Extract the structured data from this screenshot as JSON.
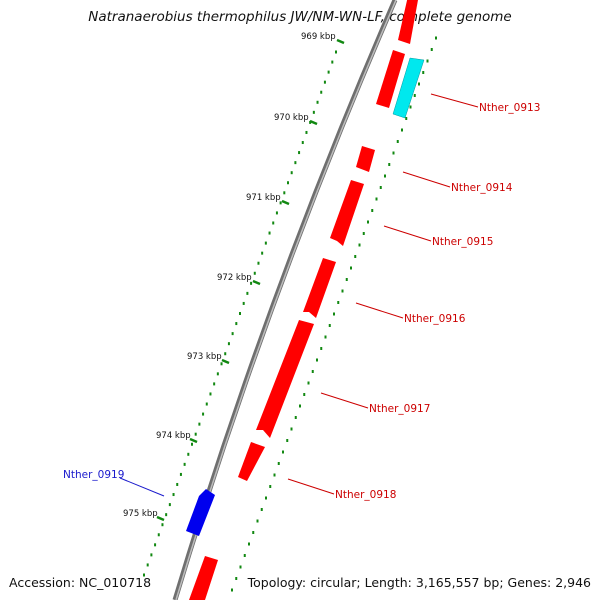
{
  "title": "Natranaerobius thermophilus JW/NM-WN-LF, complete genome",
  "footer": {
    "accession": "Accession: NC_010718",
    "summary": "Topology: circular; Length: 3,165,557 bp; Genes: 2,946"
  },
  "ticks": [
    "969 kbp",
    "970 kbp",
    "971 kbp",
    "972 kbp",
    "973 kbp",
    "974 kbp",
    "975 kbp"
  ],
  "gene_labels": [
    "Nther_0913",
    "Nther_0914",
    "Nther_0915",
    "Nther_0916",
    "Nther_0917",
    "Nther_0918",
    "Nther_0919"
  ],
  "colors": {
    "forward_gene": "#ff0000",
    "reverse_gene": "#0000ff",
    "highlight_gene": "#00ffff",
    "backbone": "#777777",
    "tick": "#118811",
    "leader_red": "#cc0000",
    "leader_blue": "#1a1acc"
  }
}
